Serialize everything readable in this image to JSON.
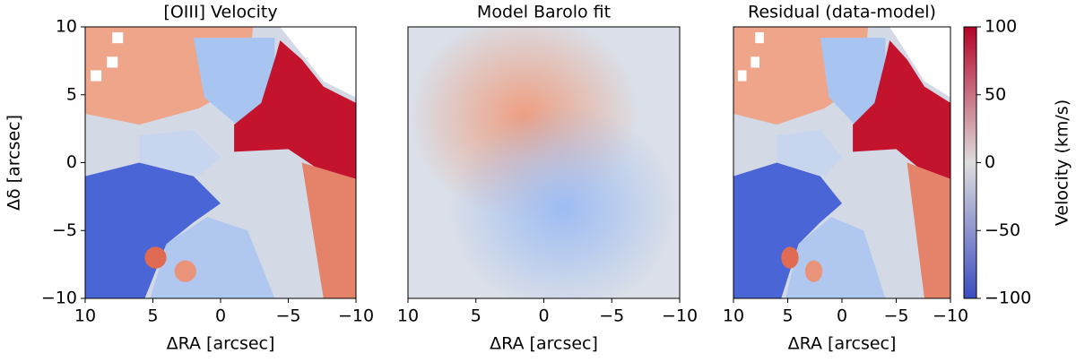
{
  "chart_data": [
    {
      "type": "image",
      "title": "[OIII] Velocity",
      "xlabel": "ΔRA [arcsec]",
      "ylabel": "Δδ [arcsec]",
      "xlim": [
        10,
        -10
      ],
      "ylim": [
        -10,
        10
      ],
      "xticks": [
        10,
        5,
        0,
        {
          "value": -5,
          "label": "−5"
        },
        {
          "value": -10,
          "label": "−10"
        }
      ],
      "yticks": [
        {
          "value": -10,
          "label": "−10"
        },
        {
          "value": -5,
          "label": "−5"
        },
        0,
        5,
        10
      ]
    },
    {
      "type": "image",
      "title": "Model Barolo fit",
      "xlabel": "ΔRA [arcsec]",
      "xlim": [
        10,
        -10
      ],
      "ylim": [
        -10,
        10
      ],
      "xticks": [
        10,
        5,
        0,
        {
          "value": -5,
          "label": "−5"
        },
        {
          "value": -10,
          "label": "−10"
        }
      ]
    },
    {
      "type": "image",
      "title": "Residual (data-model)",
      "xlabel": "ΔRA [arcsec]",
      "xlim": [
        10,
        -10
      ],
      "ylim": [
        -10,
        10
      ],
      "xticks": [
        10,
        5,
        0,
        {
          "value": -5,
          "label": "−5"
        },
        {
          "value": -10,
          "label": "−10"
        }
      ]
    },
    {
      "type": "colorbar",
      "label": "Velocity (km/s)",
      "lim": [
        -100,
        100
      ],
      "colors": [
        "#3b4cc0",
        "#dddddd",
        "#b40426"
      ],
      "ticks": [
        {
          "value": -100,
          "label": "−100"
        },
        {
          "value": -50,
          "label": "−50"
        },
        0,
        50,
        100
      ]
    }
  ]
}
